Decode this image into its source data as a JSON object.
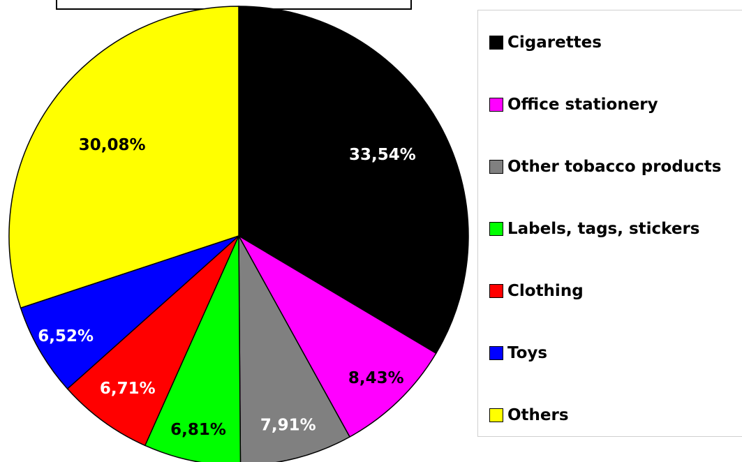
{
  "chart_data": {
    "type": "pie",
    "title": "",
    "legend_position": "right",
    "slices": [
      {
        "label": "Cigarettes",
        "value": 33.54,
        "value_label": "33,54%",
        "color": "#000000",
        "label_color": "#ffffff"
      },
      {
        "label": "Office stationery",
        "value": 8.43,
        "value_label": "8,43%",
        "color": "#ff00ff",
        "label_color": "#000000"
      },
      {
        "label": "Other tobacco products",
        "value": 7.91,
        "value_label": "7,91%",
        "color": "#808080",
        "label_color": "#ffffff"
      },
      {
        "label": "Labels, tags, stickers",
        "value": 6.81,
        "value_label": "6,81%",
        "color": "#00ff00",
        "label_color": "#000000"
      },
      {
        "label": "Clothing",
        "value": 6.71,
        "value_label": "6,71%",
        "color": "#ff0000",
        "label_color": "#ffffff"
      },
      {
        "label": "Toys",
        "value": 6.52,
        "value_label": "6,52%",
        "color": "#0000ff",
        "label_color": "#ffffff"
      },
      {
        "label": "Others",
        "value": 30.08,
        "value_label": "30,08%",
        "color": "#ffff00",
        "label_color": "#000000"
      }
    ]
  }
}
